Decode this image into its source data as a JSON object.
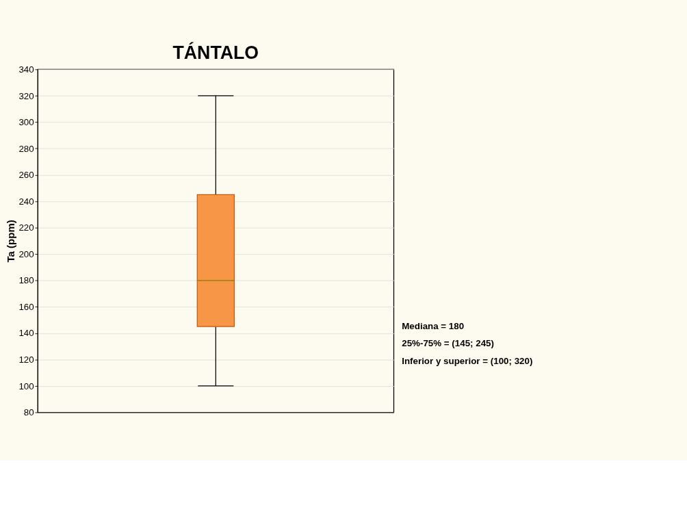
{
  "chart_data": {
    "type": "box",
    "title": "TÁNTALO",
    "ylabel": "Ta (ppm)",
    "categories": [
      null
    ],
    "boxes": [
      {
        "low": 100,
        "q1": 145,
        "median": 180,
        "q3": 245,
        "high": 320
      }
    ],
    "color": "#f79646",
    "ylim": [
      80,
      340
    ],
    "yticks": [
      80,
      100,
      120,
      140,
      160,
      180,
      200,
      220,
      240,
      260,
      280,
      300,
      320,
      340
    ],
    "grid": "y",
    "tick_labels": "y",
    "annotations": [
      "Mediana = 180",
      "25%-75% = (145; 245)",
      "Inferior y superior = (100; 320)"
    ]
  }
}
